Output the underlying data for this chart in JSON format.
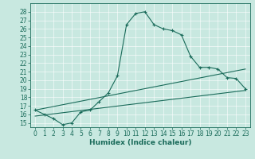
{
  "xlabel": "Humidex (Indice chaleur)",
  "bg_color": "#c8e8e0",
  "line_color": "#1a6b5a",
  "xlim": [
    -0.5,
    23.5
  ],
  "ylim": [
    14.5,
    29.0
  ],
  "xticks": [
    0,
    1,
    2,
    3,
    4,
    5,
    6,
    7,
    8,
    9,
    10,
    11,
    12,
    13,
    14,
    15,
    16,
    17,
    18,
    19,
    20,
    21,
    22,
    23
  ],
  "yticks": [
    15,
    16,
    17,
    18,
    19,
    20,
    21,
    22,
    23,
    24,
    25,
    26,
    27,
    28
  ],
  "curve1_x": [
    0,
    1,
    2,
    3,
    4,
    5,
    6,
    7,
    8,
    9,
    10,
    11,
    12,
    13,
    14,
    15,
    16,
    17,
    18,
    19,
    20,
    21,
    22,
    23
  ],
  "curve1_y": [
    16.5,
    16.0,
    15.5,
    14.8,
    15.0,
    16.3,
    16.5,
    17.5,
    18.5,
    20.5,
    26.5,
    27.8,
    28.0,
    26.5,
    26.0,
    25.8,
    25.3,
    22.8,
    21.5,
    21.5,
    21.3,
    20.3,
    20.2,
    19.0
  ],
  "curve2_x": [
    0,
    23
  ],
  "curve2_y": [
    16.5,
    21.3
  ],
  "curve3_x": [
    0,
    23
  ],
  "curve3_y": [
    15.8,
    18.8
  ],
  "tick_fontsize": 5.5,
  "xlabel_fontsize": 6.5
}
